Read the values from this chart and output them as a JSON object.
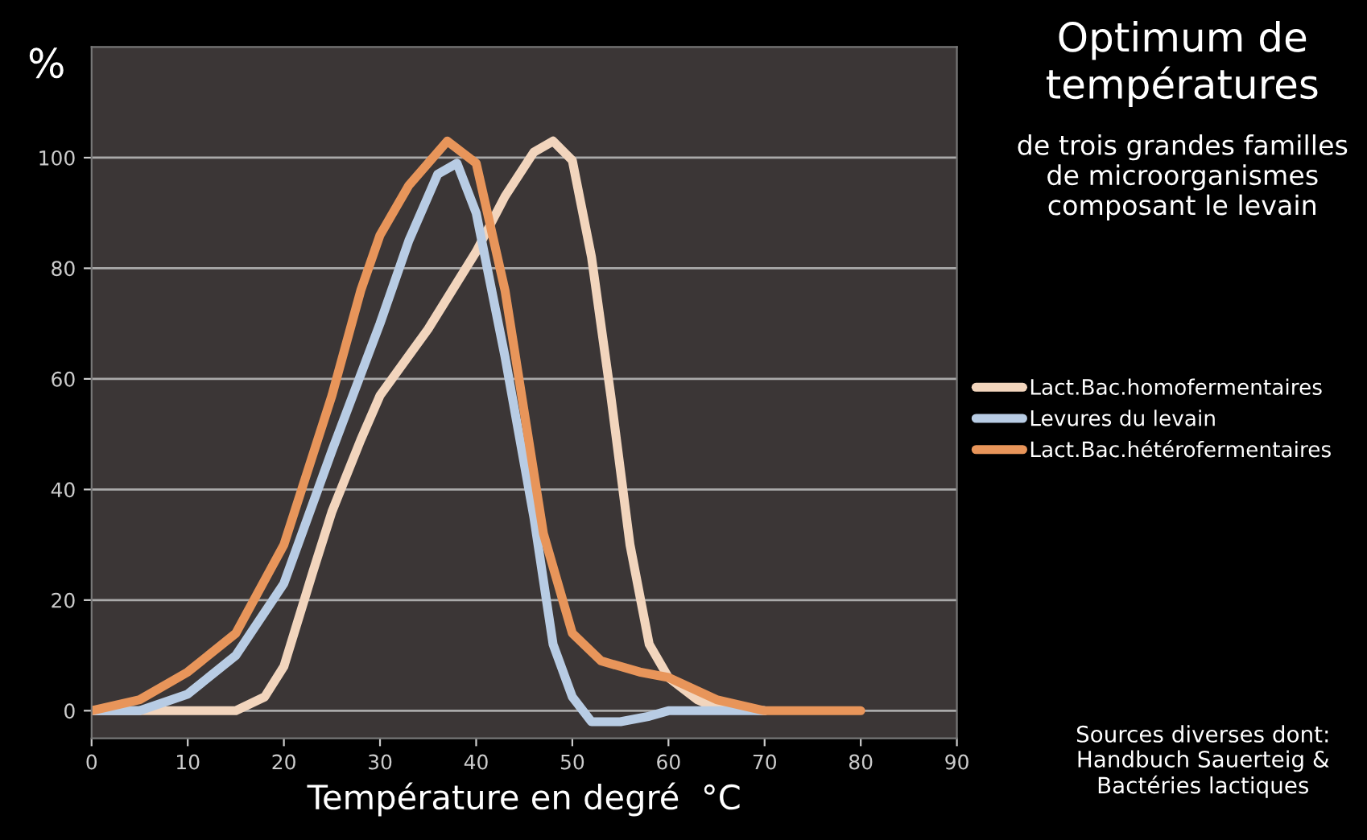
{
  "chart_data": {
    "type": "line",
    "title": "Optimum de températures",
    "subtitle": "de trois grandes familles de microorganismes composant le levain",
    "xlabel": "Température en degré  °C",
    "ylabel": "%",
    "annotations": [
      "Sources diverses dont: Handbuch Sauerteig & Bactéries lactiques"
    ],
    "series": [
      {
        "name": "Lact.Bac.homofermentaires",
        "color": "#f2d5bd",
        "x": [
          0,
          5,
          10,
          15,
          18,
          20,
          23,
          25,
          28,
          30,
          35,
          40,
          43,
          46,
          48,
          50,
          52,
          54,
          56,
          58,
          60,
          63,
          65,
          70
        ],
        "values": [
          0,
          0,
          0,
          0,
          2.5,
          8,
          25,
          36,
          49,
          57,
          69,
          83,
          93,
          101,
          103,
          99.5,
          82,
          57,
          30,
          12,
          6,
          2,
          0.5,
          0
        ]
      },
      {
        "name": "Levures du levain",
        "color": "#b8cce4",
        "x": [
          0,
          5,
          10,
          15,
          20,
          25,
          30,
          33,
          36,
          38,
          40,
          43,
          46,
          48,
          50,
          52,
          55,
          58,
          60,
          70
        ],
        "values": [
          0,
          0,
          3,
          10,
          23,
          47,
          70,
          85,
          97,
          99,
          90,
          64,
          35,
          12,
          2.5,
          -2,
          -2,
          -1,
          0,
          0
        ]
      },
      {
        "name": "Lact.Bac.hétérofermentaires",
        "color": "#e8955a",
        "x": [
          0,
          5,
          10,
          15,
          20,
          25,
          28,
          30,
          33,
          37,
          40,
          43,
          45,
          47,
          50,
          53,
          57,
          60,
          65,
          70,
          75,
          80
        ],
        "values": [
          0,
          2,
          7,
          14,
          30,
          57,
          76,
          86,
          95,
          103,
          99,
          76,
          54,
          32,
          14,
          9,
          7,
          6,
          2,
          0,
          0,
          0
        ]
      }
    ],
    "xlim": [
      0,
      90
    ],
    "xticks": [
      0,
      10,
      20,
      30,
      40,
      50,
      60,
      70,
      80,
      90
    ],
    "ylim": [
      -5,
      120
    ],
    "yticks": [
      0,
      20,
      40,
      60,
      80,
      100
    ],
    "grid": "y",
    "legend": "right",
    "line_style": "solid",
    "marker": "none"
  }
}
